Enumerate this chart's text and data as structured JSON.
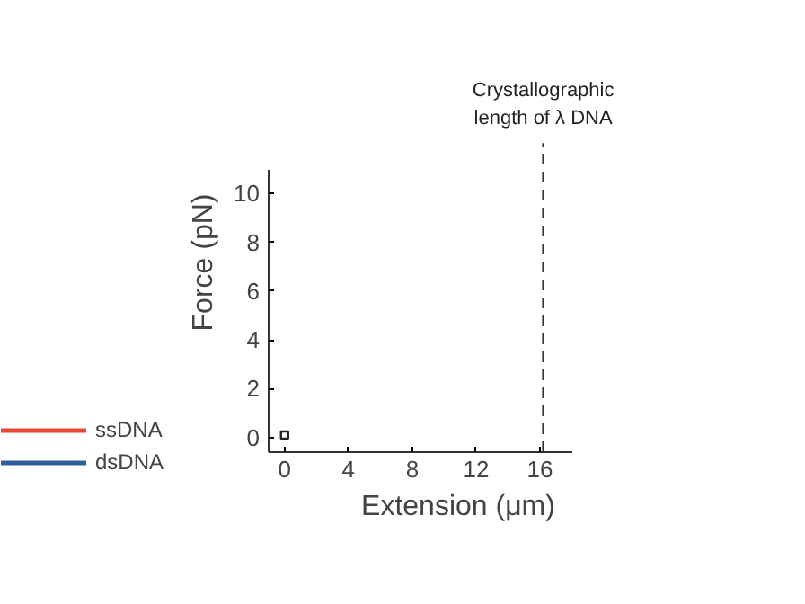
{
  "chart_data": {
    "type": "line",
    "xlabel": "Extension (μm)",
    "ylabel": "Force (pN)",
    "x": [
      0
    ],
    "series": [
      {
        "name": "ssDNA",
        "color": "#e8473a",
        "values": [
          null
        ]
      },
      {
        "name": "dsDNA",
        "color": "#2e5f9a",
        "values": [
          null
        ]
      },
      {
        "type": "scatter",
        "color": "#222222",
        "marker": "square",
        "values": [
          0.1
        ]
      }
    ],
    "xlim": [
      -1,
      18
    ],
    "xticks": [
      0,
      4,
      8,
      12,
      16
    ],
    "ylim": [
      -0.6,
      11
    ],
    "yticks": [
      0,
      2,
      4,
      6,
      8,
      10
    ],
    "ref_lines": [
      {
        "axis": "x",
        "value": 16.2,
        "label": "Crystallographic length of λ DNA",
        "color": "#333333",
        "line_style": "dashed"
      }
    ],
    "grid": false,
    "legend": "bottom left"
  }
}
